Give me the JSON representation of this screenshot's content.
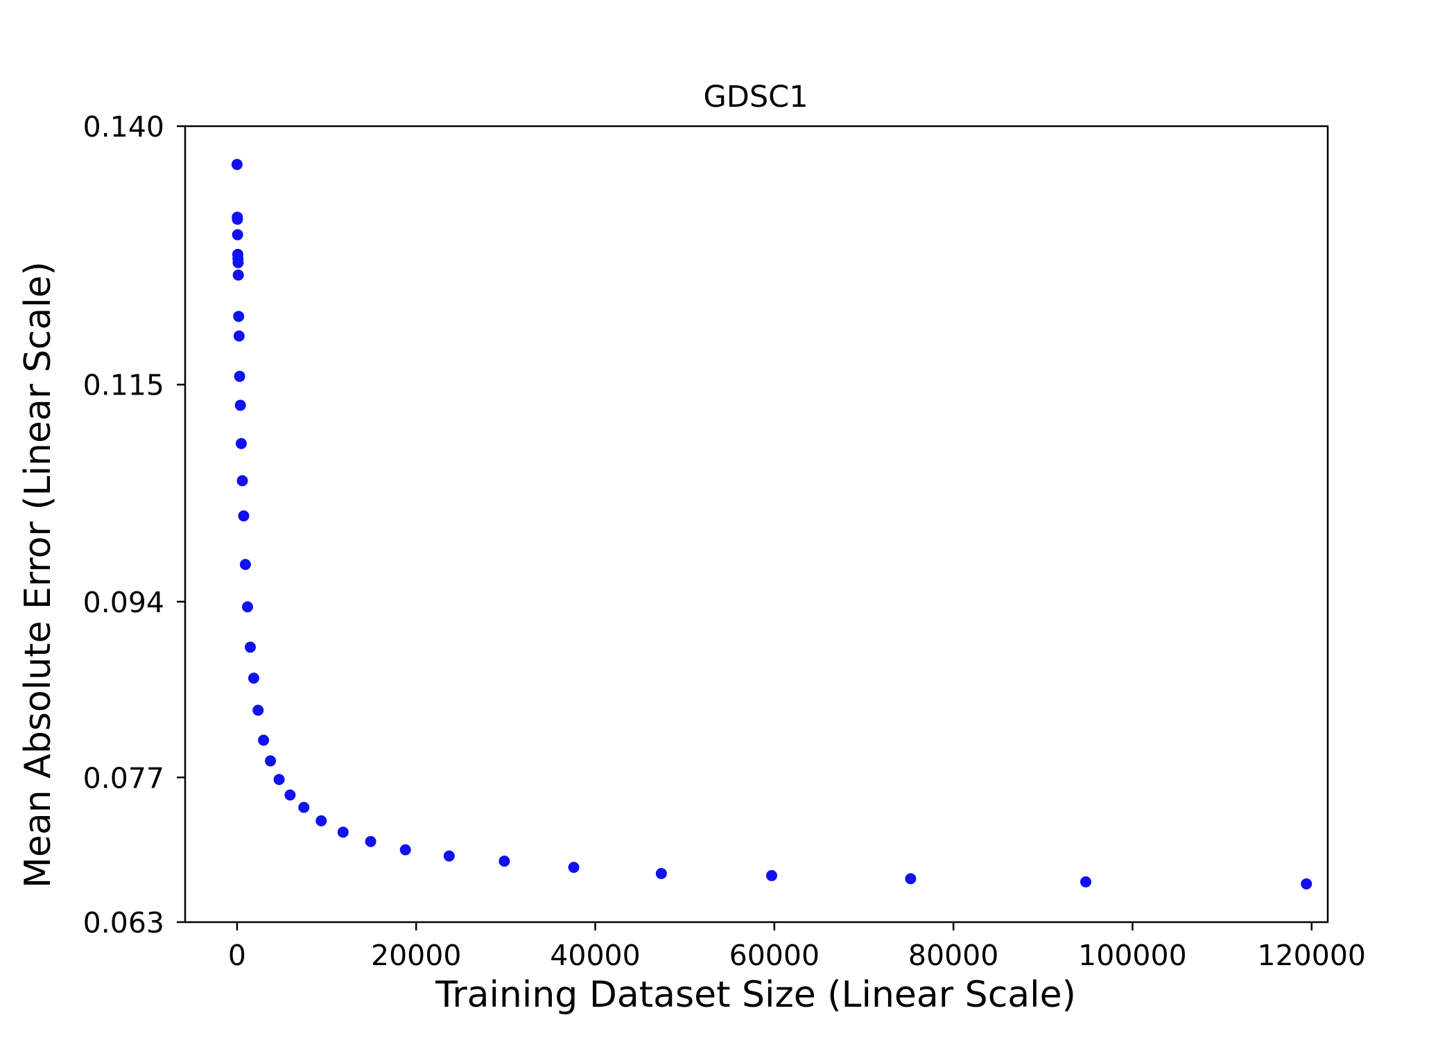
{
  "chart_data": {
    "type": "scatter",
    "title": "GDSC1",
    "xlabel": "Training Dataset Size (Linear Scale)",
    "ylabel": "Mean Absolute Error (Linear Scale)",
    "xlim": [
      -5800,
      121800
    ],
    "ylim": [
      0.063,
      0.14
    ],
    "x_ticks": [
      0,
      20000,
      40000,
      60000,
      80000,
      100000,
      120000
    ],
    "x_tick_labels": [
      "0",
      "20000",
      "40000",
      "60000",
      "80000",
      "100000",
      "120000"
    ],
    "y_ticks": [
      0.063,
      0.077,
      0.094,
      0.115,
      0.14
    ],
    "y_tick_labels": [
      "0.063",
      "0.077",
      "0.094",
      "0.115",
      "0.140"
    ],
    "grid": false,
    "marker_color": "#1010f0",
    "series": [
      {
        "points": [
          {
            "x": 0,
            "y": 0.1363
          },
          {
            "x": 30,
            "y": 0.1312
          },
          {
            "x": 40,
            "y": 0.131
          },
          {
            "x": 60,
            "y": 0.1295
          },
          {
            "x": 80,
            "y": 0.1276
          },
          {
            "x": 100,
            "y": 0.1272
          },
          {
            "x": 120,
            "y": 0.1268
          },
          {
            "x": 140,
            "y": 0.1256
          },
          {
            "x": 180,
            "y": 0.1216
          },
          {
            "x": 230,
            "y": 0.1197
          },
          {
            "x": 290,
            "y": 0.1158
          },
          {
            "x": 370,
            "y": 0.113
          },
          {
            "x": 470,
            "y": 0.1093
          },
          {
            "x": 590,
            "y": 0.1057
          },
          {
            "x": 740,
            "y": 0.1023
          },
          {
            "x": 930,
            "y": 0.0976
          },
          {
            "x": 1170,
            "y": 0.0935
          },
          {
            "x": 1480,
            "y": 0.0896
          },
          {
            "x": 1860,
            "y": 0.0866
          },
          {
            "x": 2350,
            "y": 0.0835
          },
          {
            "x": 2960,
            "y": 0.0806
          },
          {
            "x": 3730,
            "y": 0.0786
          },
          {
            "x": 4700,
            "y": 0.0768
          },
          {
            "x": 5920,
            "y": 0.0753
          },
          {
            "x": 7460,
            "y": 0.0741
          },
          {
            "x": 9400,
            "y": 0.0728
          },
          {
            "x": 11840,
            "y": 0.0717
          },
          {
            "x": 14920,
            "y": 0.0708
          },
          {
            "x": 18800,
            "y": 0.07
          },
          {
            "x": 23690,
            "y": 0.0694
          },
          {
            "x": 29850,
            "y": 0.0689
          },
          {
            "x": 37600,
            "y": 0.0683
          },
          {
            "x": 47380,
            "y": 0.0677
          },
          {
            "x": 59700,
            "y": 0.0675
          },
          {
            "x": 75220,
            "y": 0.0672
          },
          {
            "x": 94780,
            "y": 0.0669
          },
          {
            "x": 119420,
            "y": 0.0667
          }
        ]
      }
    ]
  }
}
